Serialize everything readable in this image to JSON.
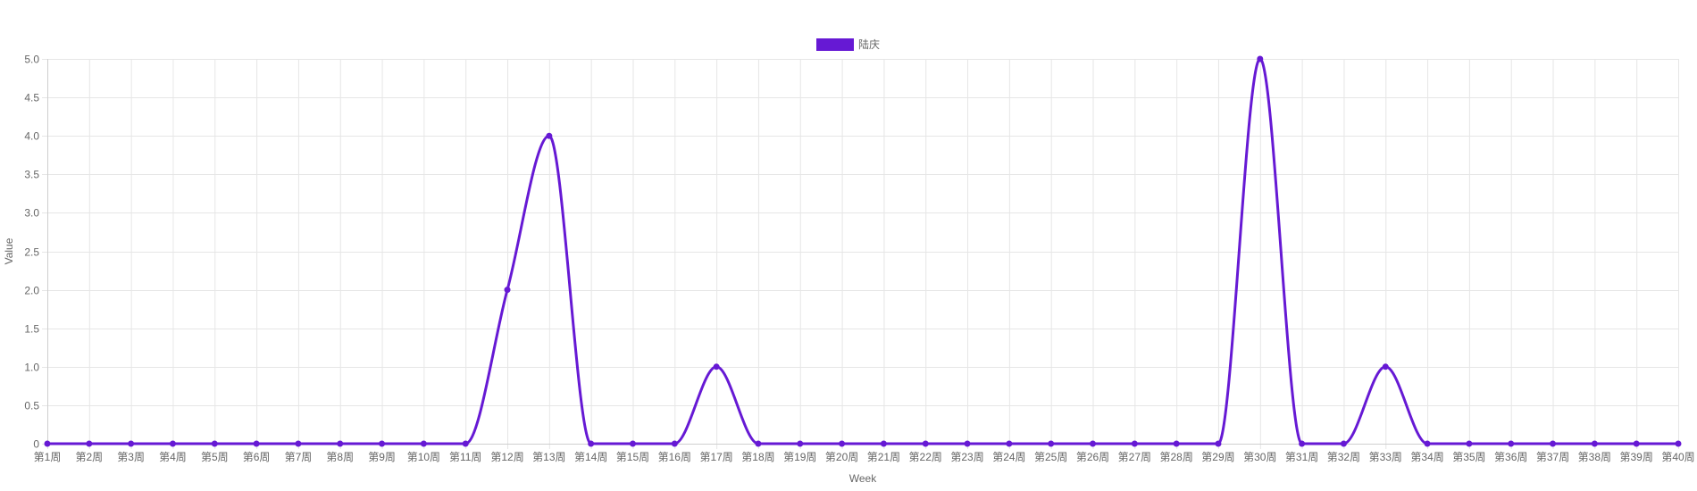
{
  "chart_data": {
    "type": "line",
    "title": "",
    "xlabel": "Week",
    "ylabel": "Value",
    "ylim": [
      0,
      5
    ],
    "y_ticks": [
      "0",
      "0.5",
      "1.0",
      "1.5",
      "2.0",
      "2.5",
      "3.0",
      "3.5",
      "4.0",
      "4.5",
      "5.0"
    ],
    "grid": true,
    "legend_position": "top-center",
    "categories": [
      "第1周",
      "第2周",
      "第3周",
      "第4周",
      "第5周",
      "第6周",
      "第7周",
      "第8周",
      "第9周",
      "第10周",
      "第11周",
      "第12周",
      "第13周",
      "第14周",
      "第15周",
      "第16周",
      "第17周",
      "第18周",
      "第19周",
      "第20周",
      "第21周",
      "第22周",
      "第23周",
      "第24周",
      "第25周",
      "第26周",
      "第27周",
      "第28周",
      "第29周",
      "第30周",
      "第31周",
      "第32周",
      "第33周",
      "第34周",
      "第35周",
      "第36周",
      "第37周",
      "第38周",
      "第39周",
      "第40周"
    ],
    "series": [
      {
        "name": "陆庆",
        "color": "#6619d4",
        "values": [
          0,
          0,
          0,
          0,
          0,
          0,
          0,
          0,
          0,
          0,
          0,
          2,
          4,
          0,
          0,
          0,
          1,
          0,
          0,
          0,
          0,
          0,
          0,
          0,
          0,
          0,
          0,
          0,
          0,
          5,
          0,
          0,
          1,
          0,
          0,
          0,
          0,
          0,
          0,
          0
        ]
      }
    ]
  }
}
